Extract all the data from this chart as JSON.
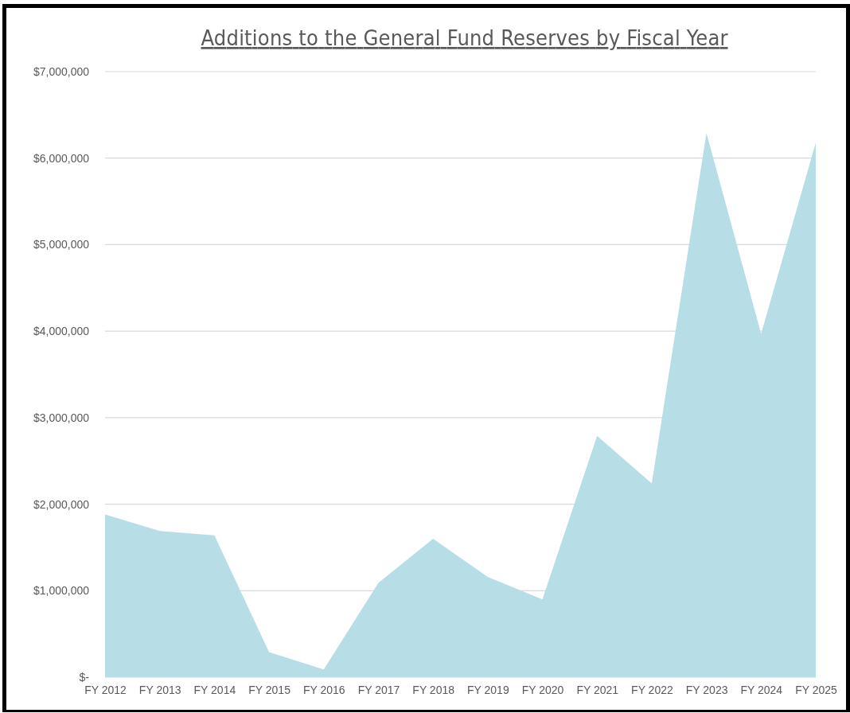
{
  "chart_data": {
    "type": "area",
    "title": "Additions to the General Fund Reserves by Fiscal Year",
    "categories": [
      "FY 2012",
      "FY 2013",
      "FY 2014",
      "FY 2015",
      "FY 2016",
      "FY 2017",
      "FY 2018",
      "FY 2019",
      "FY 2020",
      "FY 2021",
      "FY 2022",
      "FY 2023",
      "FY 2024",
      "FY 2025"
    ],
    "series": [
      {
        "color": "#b7dde6",
        "values": [
          1880000,
          1690000,
          1640000,
          290000,
          90000,
          1090000,
          1600000,
          1160000,
          900000,
          2790000,
          2240000,
          6290000,
          3970000,
          6180000
        ]
      }
    ],
    "ylim": [
      0,
      7000000
    ],
    "yticks": [
      {
        "value": 0,
        "label": "$-"
      },
      {
        "value": 1000000,
        "label": "$1,000,000"
      },
      {
        "value": 2000000,
        "label": "$2,000,000"
      },
      {
        "value": 3000000,
        "label": "$3,000,000"
      },
      {
        "value": 4000000,
        "label": "$4,000,000"
      },
      {
        "value": 5000000,
        "label": "$5,000,000"
      },
      {
        "value": 6000000,
        "label": "$6,000,000"
      },
      {
        "value": 7000000,
        "label": "$7,000,000"
      }
    ],
    "grid": "y",
    "legend": false
  }
}
